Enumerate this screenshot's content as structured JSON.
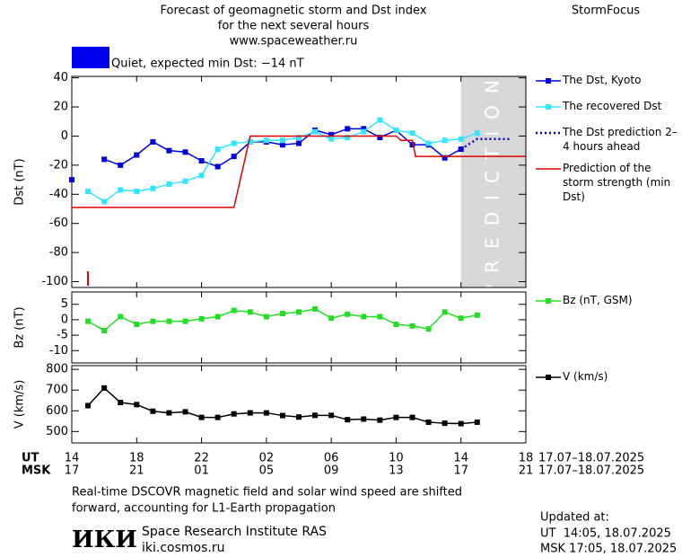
{
  "header": {
    "title": [
      "Forecast of geomagnetic storm and Dst index",
      "for the next several hours",
      "www.spaceweather.ru"
    ],
    "brand": "StormFocus",
    "status": "Quiet, expected min Dst: −14 nT",
    "status_color": "#0000ee"
  },
  "footer": {
    "note": [
      "Real-time DSCOVR magnetic field and solar wind speed are shifted",
      "forward, accounting for L1-Earth propagation"
    ],
    "logo": "ИКИ",
    "institute": "Space Research Institute RAS",
    "site": "iki.cosmos.ru",
    "updated": [
      "Updated at:",
      "UT  14:05, 18.07.2025",
      "MSK 17:05, 18.07.2025"
    ]
  },
  "chart_data": [
    {
      "type": "line",
      "y_label": "Dst (nT)",
      "ylim": [
        -104,
        41
      ],
      "yticks": [
        40,
        20,
        0,
        -20,
        -40,
        -60,
        -80,
        -100
      ],
      "prediction_zone": {
        "xlim": [
          24,
          28
        ],
        "label": "PREDICTION"
      },
      "series": [
        {
          "name": "The Dst, Kyoto",
          "color": "#0000dd",
          "marker": "square",
          "x": [
            0,
            1,
            2,
            3,
            4,
            5,
            6,
            7,
            8,
            9,
            10,
            11,
            12,
            13,
            14,
            15,
            16,
            17,
            18,
            19,
            20,
            21,
            22,
            23,
            24
          ],
          "values": [
            -30,
            null,
            -16,
            -20,
            -13,
            -4,
            -10,
            -11,
            -17,
            -21,
            -14,
            -4,
            -4,
            -6,
            -5,
            4,
            1,
            5,
            5,
            -1,
            4,
            -6,
            -6,
            -15,
            -9
          ]
        },
        {
          "name": "The recovered Dst",
          "color": "#33e6ff",
          "marker": "square",
          "x": [
            1,
            2,
            3,
            4,
            5,
            6,
            7,
            8,
            9,
            10,
            11,
            12,
            13,
            14,
            15,
            16,
            17,
            18,
            19,
            20,
            21,
            22,
            23,
            24,
            25
          ],
          "values": [
            -38,
            -45,
            -37,
            -38,
            -36,
            -33,
            -31,
            -27,
            -9,
            -5,
            -4,
            -3,
            -3,
            -1,
            3,
            -2,
            -1,
            3,
            11,
            4,
            2,
            -5,
            -3,
            -2,
            2
          ]
        },
        {
          "name": "The Dst prediction 2–4 hours ahead",
          "color": "#0000dd",
          "dash": "dotted",
          "x": [
            24,
            25,
            26,
            27
          ],
          "values": [
            -9,
            -2,
            -2,
            -2
          ]
        },
        {
          "name": "Prediction of the storm strength (min Dst)",
          "color": "#e00000",
          "x": [
            0,
            10,
            11,
            20,
            20.3,
            21,
            21.2,
            28
          ],
          "values": [
            -49,
            -49,
            0,
            0,
            -3,
            -3,
            -14,
            -14
          ]
        }
      ]
    },
    {
      "type": "line",
      "y_label": "Bz (nT)",
      "ylim": [
        -14,
        9
      ],
      "yticks": [
        5,
        0,
        -5,
        -10
      ],
      "series": [
        {
          "name": "Bz (nT, GSM)",
          "color": "#22dd22",
          "marker": "square",
          "x": [
            1,
            2,
            3,
            4,
            5,
            6,
            7,
            8,
            9,
            10,
            11,
            12,
            13,
            14,
            15,
            16,
            17,
            18,
            19,
            20,
            21,
            22,
            23,
            24,
            25
          ],
          "values": [
            -0.5,
            -3.5,
            1,
            -1.5,
            -0.5,
            -0.5,
            -0.5,
            0.3,
            1,
            3,
            2.5,
            1,
            2,
            2.5,
            3.5,
            0.5,
            1.8,
            1,
            1,
            -1.5,
            -2,
            -3,
            2.5,
            0.5,
            1.5
          ]
        }
      ]
    },
    {
      "type": "line",
      "y_label": "V (km/s)",
      "ylim": [
        445,
        818
      ],
      "yticks": [
        800,
        700,
        600,
        500
      ],
      "xlim": [
        0,
        28
      ],
      "x_axis_name": "UT",
      "xticks": [
        {
          "value": 0,
          "label": "14"
        },
        {
          "value": 4,
          "label": "18"
        },
        {
          "value": 8,
          "label": "22"
        },
        {
          "value": 12,
          "label": "02"
        },
        {
          "value": 16,
          "label": "06"
        },
        {
          "value": 20,
          "label": "10"
        },
        {
          "value": 24,
          "label": "14"
        },
        {
          "value": 28,
          "label": "18"
        }
      ],
      "x_range": "17.07–18.07.2025",
      "x2_axis_name": "MSK",
      "x2ticks": [
        {
          "value": 0,
          "label": "17"
        },
        {
          "value": 4,
          "label": "21"
        },
        {
          "value": 8,
          "label": "01"
        },
        {
          "value": 12,
          "label": "05"
        },
        {
          "value": 16,
          "label": "09"
        },
        {
          "value": 20,
          "label": "13"
        },
        {
          "value": 24,
          "label": "17"
        },
        {
          "value": 28,
          "label": "21"
        }
      ],
      "x2_range": "17.07–18.07.2025",
      "series": [
        {
          "name": "V (km/s)",
          "color": "#000000",
          "marker": "square",
          "x": [
            1,
            2,
            3,
            4,
            5,
            6,
            7,
            8,
            9,
            10,
            11,
            12,
            13,
            14,
            15,
            16,
            17,
            18,
            19,
            20,
            21,
            22,
            23,
            24,
            25
          ],
          "values": [
            625,
            710,
            640,
            630,
            598,
            590,
            595,
            568,
            568,
            585,
            590,
            590,
            577,
            570,
            578,
            578,
            557,
            560,
            555,
            568,
            568,
            545,
            540,
            538,
            545
          ]
        }
      ]
    }
  ]
}
